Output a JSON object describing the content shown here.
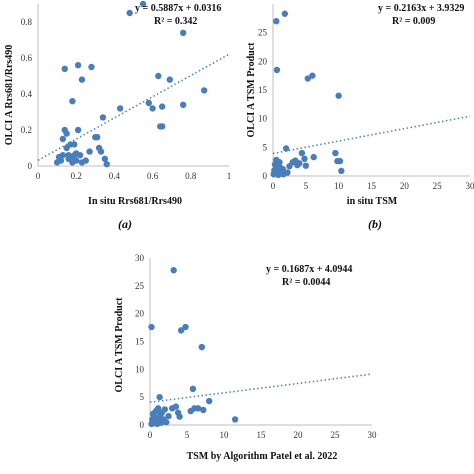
{
  "chart_data": [
    {
      "type": "scatter",
      "panel_label": "(a)",
      "xlabel": "In situ Rrs681/Rrs490",
      "ylabel": "OLCI A Rrs681/Rrs490",
      "xlim": [
        0,
        1
      ],
      "ylim": [
        0,
        0.9
      ],
      "xticks": [
        "0",
        "0.2",
        "0.4",
        "0.6",
        "0.8",
        "1"
      ],
      "yticks": [
        "0",
        "0.2",
        "0.4",
        "0.6",
        "0.8"
      ],
      "trendline": {
        "slope": 0.5887,
        "intercept": 0.0316,
        "style": "dotted"
      },
      "equation": "y = 0.5887x + 0.0316",
      "r2": "R² = 0.342",
      "grid": false,
      "points": [
        [
          0.1,
          0.02
        ],
        [
          0.11,
          0.05
        ],
        [
          0.12,
          0.03
        ],
        [
          0.13,
          0.06
        ],
        [
          0.13,
          0.15
        ],
        [
          0.14,
          0.2
        ],
        [
          0.14,
          0.54
        ],
        [
          0.15,
          0.1
        ],
        [
          0.15,
          0.18
        ],
        [
          0.16,
          0.06
        ],
        [
          0.16,
          0.04
        ],
        [
          0.17,
          0.12
        ],
        [
          0.17,
          0.04
        ],
        [
          0.18,
          0.02
        ],
        [
          0.18,
          0.36
        ],
        [
          0.19,
          0.12
        ],
        [
          0.19,
          0.06
        ],
        [
          0.2,
          0.07
        ],
        [
          0.2,
          0.03
        ],
        [
          0.21,
          0.56
        ],
        [
          0.21,
          0.2
        ],
        [
          0.22,
          0.06
        ],
        [
          0.23,
          0.48
        ],
        [
          0.23,
          0.02
        ],
        [
          0.25,
          0.03
        ],
        [
          0.27,
          0.08
        ],
        [
          0.28,
          0.55
        ],
        [
          0.3,
          0.16
        ],
        [
          0.31,
          0.16
        ],
        [
          0.32,
          0.1
        ],
        [
          0.33,
          0.08
        ],
        [
          0.34,
          0.27
        ],
        [
          0.35,
          0.04
        ],
        [
          0.36,
          0.01
        ],
        [
          0.43,
          0.32
        ],
        [
          0.48,
          0.85
        ],
        [
          0.55,
          0.9
        ],
        [
          0.58,
          0.35
        ],
        [
          0.6,
          0.32
        ],
        [
          0.63,
          0.5
        ],
        [
          0.64,
          0.22
        ],
        [
          0.65,
          0.22
        ],
        [
          0.65,
          0.33
        ],
        [
          0.69,
          0.48
        ],
        [
          0.76,
          0.34
        ],
        [
          0.76,
          0.74
        ],
        [
          0.87,
          0.42
        ]
      ]
    },
    {
      "type": "scatter",
      "panel_label": "(b)",
      "xlabel": "in situ TSM",
      "ylabel": "OLCI A TSM Product",
      "xlim": [
        0,
        30
      ],
      "ylim": [
        0,
        30
      ],
      "xticks": [
        "0",
        "5",
        "10",
        "15",
        "20",
        "25",
        "30"
      ],
      "yticks": [
        "0",
        "5",
        "10",
        "15",
        "20",
        "25"
      ],
      "trendline": {
        "slope": 0.2163,
        "intercept": 3.9329,
        "style": "dotted"
      },
      "equation": "y = 0.2163x + 3.9329",
      "r2": "R² = 0.009",
      "grid": false,
      "points": [
        [
          0.1,
          0.3
        ],
        [
          0.2,
          1.0
        ],
        [
          0.3,
          2.0
        ],
        [
          0.4,
          0.5
        ],
        [
          0.5,
          2.8
        ],
        [
          0.5,
          27.0
        ],
        [
          0.6,
          18.5
        ],
        [
          0.7,
          1.4
        ],
        [
          0.8,
          0.2
        ],
        [
          0.9,
          0.9
        ],
        [
          1.0,
          2.4
        ],
        [
          1.0,
          1.6
        ],
        [
          1.2,
          0.4
        ],
        [
          1.3,
          0.8
        ],
        [
          1.5,
          1.2
        ],
        [
          1.6,
          0.3
        ],
        [
          1.8,
          28.3
        ],
        [
          2.0,
          4.8
        ],
        [
          2.2,
          0.6
        ],
        [
          2.5,
          1.7
        ],
        [
          3.0,
          2.4
        ],
        [
          3.4,
          2.7
        ],
        [
          3.7,
          1.9
        ],
        [
          4.0,
          2.2
        ],
        [
          4.4,
          4.0
        ],
        [
          4.8,
          3.0
        ],
        [
          5.0,
          1.8
        ],
        [
          5.3,
          17.0
        ],
        [
          6.0,
          17.5
        ],
        [
          6.2,
          3.3
        ],
        [
          9.5,
          4.0
        ],
        [
          9.8,
          2.6
        ],
        [
          10.0,
          14.0
        ],
        [
          10.2,
          2.6
        ],
        [
          10.4,
          0.9
        ]
      ]
    },
    {
      "type": "scatter",
      "panel_label": "",
      "xlabel": "TSM by Algorithm Patel et al. 2022",
      "ylabel": "OLCI A TSM Product",
      "xlim": [
        0,
        30
      ],
      "ylim": [
        0,
        30
      ],
      "xticks": [
        "0",
        "5",
        "10",
        "15",
        "20",
        "25",
        "30"
      ],
      "yticks": [
        "0",
        "5",
        "10",
        "15",
        "20",
        "25",
        "30"
      ],
      "trendline": {
        "slope": 0.1687,
        "intercept": 4.0944,
        "style": "dotted"
      },
      "equation": "y = 0.1687x + 4.0944",
      "r2": "R² = 0.0044",
      "grid": false,
      "points": [
        [
          0.2,
          0.2
        ],
        [
          0.2,
          17.6
        ],
        [
          0.3,
          1.0
        ],
        [
          0.4,
          2.0
        ],
        [
          0.5,
          0.5
        ],
        [
          0.6,
          1.5
        ],
        [
          0.7,
          0.3
        ],
        [
          0.8,
          2.5
        ],
        [
          0.9,
          0.8
        ],
        [
          1.0,
          1.2
        ],
        [
          1.0,
          0.2
        ],
        [
          1.1,
          3.0
        ],
        [
          1.2,
          0.6
        ],
        [
          1.3,
          5.0
        ],
        [
          1.4,
          1.8
        ],
        [
          1.5,
          0.4
        ],
        [
          1.6,
          2.2
        ],
        [
          1.8,
          1.0
        ],
        [
          2.0,
          2.8
        ],
        [
          2.2,
          0.5
        ],
        [
          2.5,
          1.6
        ],
        [
          3.0,
          3.0
        ],
        [
          3.2,
          27.8
        ],
        [
          3.5,
          3.3
        ],
        [
          3.8,
          2.2
        ],
        [
          4.0,
          1.5
        ],
        [
          4.2,
          17.0
        ],
        [
          4.8,
          17.6
        ],
        [
          5.5,
          2.5
        ],
        [
          5.8,
          6.5
        ],
        [
          6.0,
          3.0
        ],
        [
          6.5,
          3.0
        ],
        [
          7.0,
          14.0
        ],
        [
          7.2,
          2.7
        ],
        [
          8.0,
          4.3
        ],
        [
          11.5,
          1.0
        ]
      ]
    }
  ],
  "colors": {
    "marker": "#4a7ebb",
    "trend": "#4a7ebb",
    "axis": "#bfbfbf"
  }
}
